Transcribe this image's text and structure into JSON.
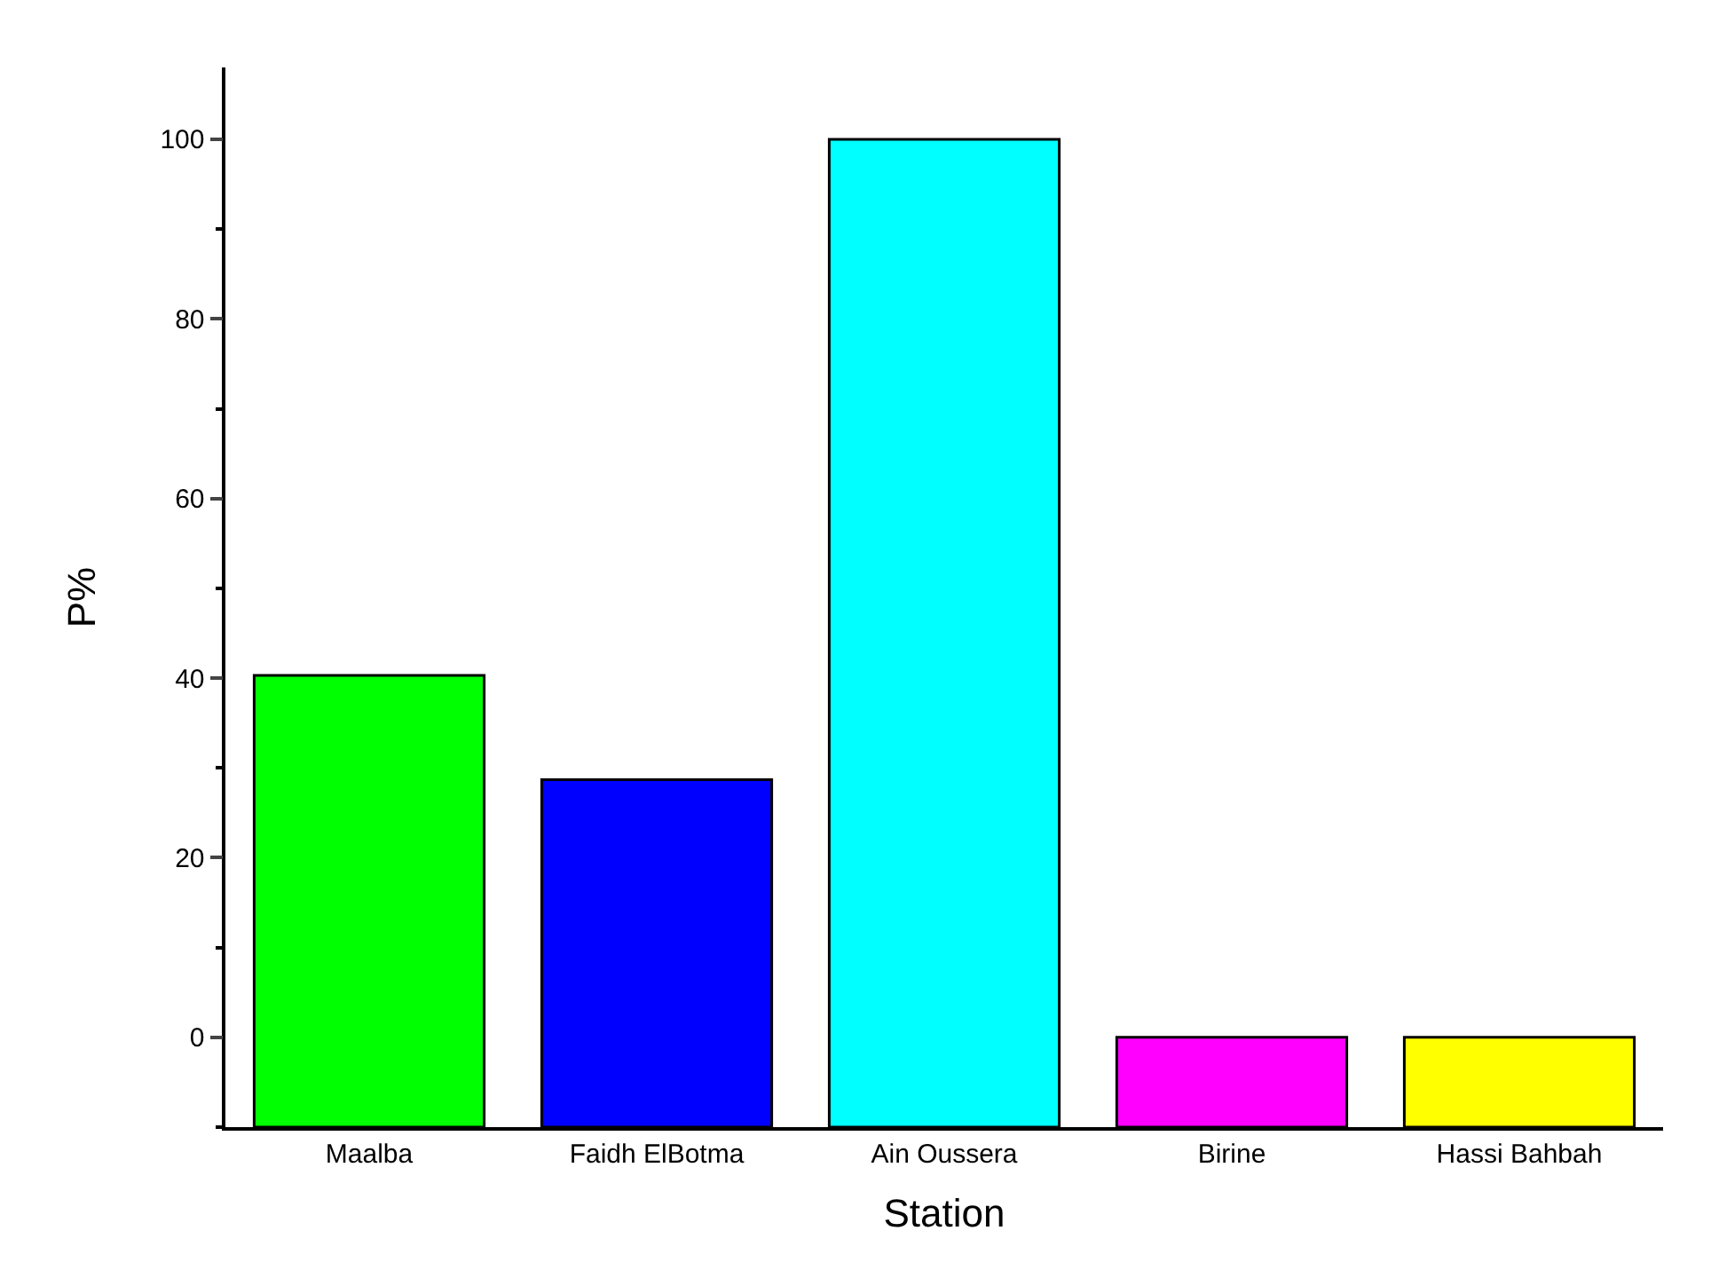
{
  "chart_data": {
    "type": "bar",
    "xlabel": "Station",
    "ylabel": "P%",
    "categories": [
      "Maalba",
      "Faidh ElBotma",
      "Ain Oussera",
      "Birine",
      "Hassi Bahbah"
    ],
    "base": [
      -10,
      -10,
      -10,
      -10,
      -10
    ],
    "values": [
      50.3,
      38.7,
      110,
      10,
      10
    ],
    "colors": [
      "#00ff00",
      "#0000ff",
      "#00ffff",
      "#ff00ff",
      "#ffff00"
    ],
    "ylim": [
      -10,
      108
    ],
    "yticks": [
      0,
      20,
      40,
      60,
      80,
      100
    ],
    "grid": false
  }
}
